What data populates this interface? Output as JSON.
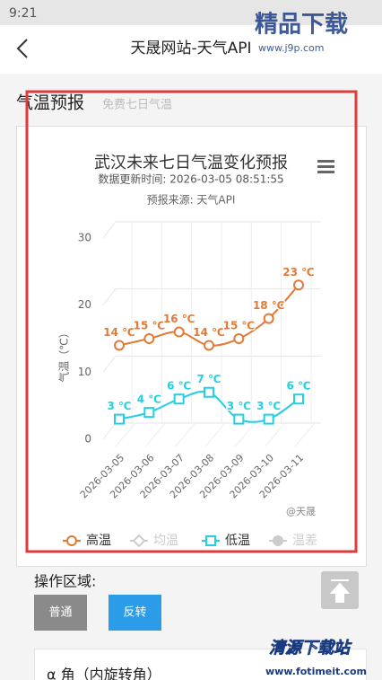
{
  "status_bar": {
    "time": "9:21"
  },
  "header": {
    "title": "天晟网站-天气API"
  },
  "section": {
    "title": "气温预报",
    "subtitle": "免费七日气温"
  },
  "chart_data": {
    "type": "line",
    "title": "武汉未来七日气温变化预报",
    "subtitle": "数据更新时间: 2026-03-05 08:51:55",
    "source": "预报来源: 天气API",
    "credit": "@天晟",
    "y_label": "气温（℃）",
    "categories": [
      "2026-03-05",
      "2026-03-06",
      "2026-03-07",
      "2026-03-08",
      "2026-03-09",
      "2026-03-10",
      "2026-03-11"
    ],
    "ylim": [
      0,
      30
    ],
    "yticks": [
      0,
      10,
      20,
      30
    ],
    "grid": true,
    "series": [
      {
        "name": "高温",
        "color": "#e27a35",
        "marker": "circle",
        "values": [
          14,
          15,
          16,
          14,
          15,
          18,
          23
        ],
        "value_labels": [
          "14 ℃",
          "15 ℃",
          "16 ℃",
          "14 ℃",
          "15 ℃",
          "18 ℃",
          "23 ℃"
        ]
      },
      {
        "name": "均温",
        "color": "#cccccc",
        "marker": "diamond",
        "visible": false
      },
      {
        "name": "低温",
        "color": "#22d0e3",
        "marker": "square",
        "values": [
          3,
          4,
          6,
          7,
          3,
          3,
          6
        ],
        "value_labels": [
          "3 ℃",
          "4 ℃",
          "6 ℃",
          "7 ℃",
          "3 ℃",
          "3 ℃",
          "6 ℃"
        ]
      },
      {
        "name": "温差",
        "color": "#cccccc",
        "marker": "dot",
        "visible": false
      }
    ]
  },
  "controls": {
    "title": "操作区域:",
    "buttons": [
      "普通",
      "反转"
    ],
    "field_label": "α 角（内旋转角）"
  },
  "watermarks": [
    "精品下载",
    "www.j9p.com",
    "清源下载站",
    "www.fotimeit.com"
  ]
}
